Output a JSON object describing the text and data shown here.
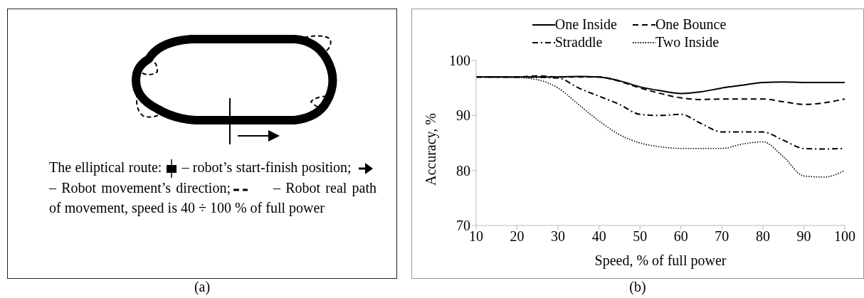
{
  "chart_data": [
    {
      "type": "other",
      "annotations": [
        "The elliptical route:",
        "– robot’s start-finish position;",
        "– Robot movement’s direction;",
        "– Robot real path of movement, speed is 40 ÷ 100 % of full power",
        "(a)"
      ]
    },
    {
      "type": "line",
      "xlabel": "Speed, % of full power",
      "ylabel": "Accuracy, %",
      "xlim": [
        10,
        100
      ],
      "xticks": [
        10,
        20,
        30,
        40,
        50,
        60,
        70,
        80,
        90,
        100
      ],
      "ylim": [
        70,
        100
      ],
      "yticks": [
        70,
        80,
        90,
        100
      ],
      "grid": false,
      "legend": "top",
      "marker": "none",
      "annotations": [
        "(b)"
      ],
      "series": [
        {
          "name": "One Inside",
          "color": "#000000",
          "line_style": "solid",
          "x": [
            10,
            20,
            30,
            35,
            40,
            45,
            50,
            55,
            60,
            65,
            70,
            75,
            80,
            85,
            90,
            100
          ],
          "values": [
            97,
            97,
            97,
            97.1,
            97,
            96.3,
            95.2,
            94.5,
            94,
            94.3,
            95,
            95.5,
            96,
            96.1,
            96,
            96
          ]
        },
        {
          "name": "One Bounce",
          "color": "#000000",
          "line_style": "dashed",
          "x": [
            10,
            20,
            25,
            30,
            40,
            45,
            50,
            55,
            60,
            65,
            70,
            75,
            80,
            85,
            90,
            95,
            100
          ],
          "values": [
            97,
            97,
            97.2,
            97,
            97,
            96.2,
            95,
            94,
            93.2,
            92.9,
            93,
            93,
            93,
            92.5,
            92,
            92.3,
            93
          ]
        },
        {
          "name": "Straddle",
          "color": "#000000",
          "line_style": "dashdot",
          "x": [
            10,
            20,
            30,
            35,
            40,
            45,
            50,
            55,
            60,
            65,
            70,
            75,
            80,
            85,
            90,
            95,
            100
          ],
          "values": [
            97,
            97,
            96.8,
            95,
            93.5,
            92,
            90.2,
            90,
            90.2,
            88.5,
            87,
            87,
            87,
            85.5,
            84,
            83.9,
            84
          ]
        },
        {
          "name": "Two Inside",
          "color": "#000000",
          "line_style": "dotted",
          "x": [
            10,
            20,
            25,
            30,
            35,
            40,
            45,
            50,
            55,
            60,
            65,
            70,
            75,
            80,
            85,
            90,
            95,
            100
          ],
          "values": [
            97,
            96.9,
            96.5,
            95,
            92,
            89,
            86.5,
            85,
            84.3,
            84,
            84,
            84,
            84.8,
            85.2,
            82.5,
            79,
            78.8,
            80
          ]
        }
      ]
    }
  ]
}
